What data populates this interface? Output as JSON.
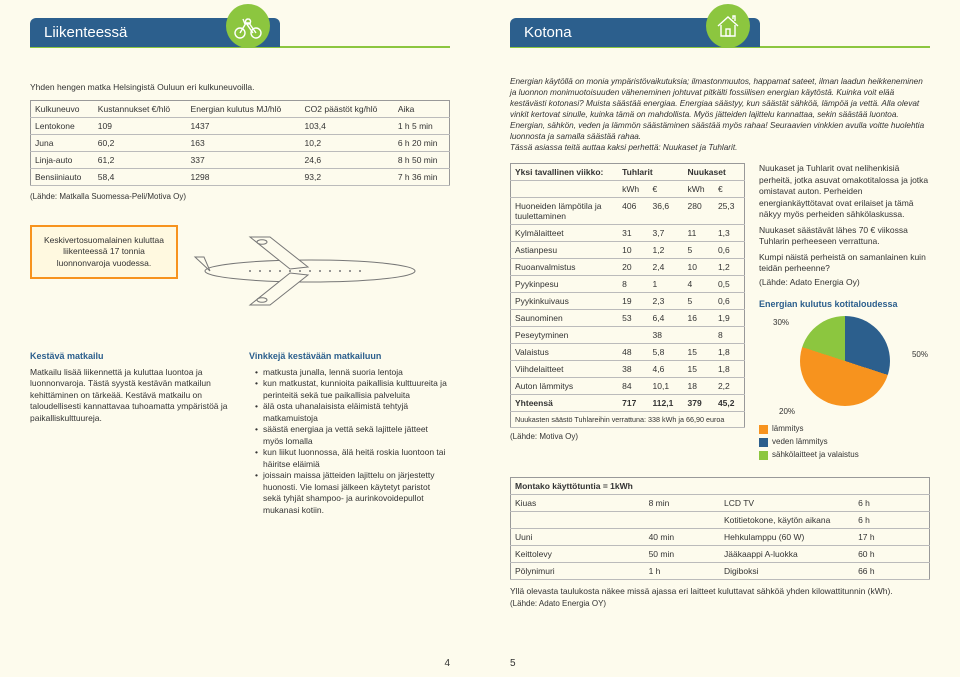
{
  "tabs": {
    "left": "Liikenteessä",
    "right": "Kotona"
  },
  "left": {
    "intro": "Yhden hengen matka Helsingistä Ouluun eri kulkuneuvoilla.",
    "transport_table": {
      "columns": [
        "Kulkuneuvo",
        "Kustannukset €/hlö",
        "Energian kulutus MJ/hlö",
        "CO2 päästöt kg/hlö",
        "Aika"
      ],
      "rows": [
        [
          "Lentokone",
          "109",
          "1437",
          "103,4",
          "1 h 5 min"
        ],
        [
          "Juna",
          "60,2",
          "163",
          "10,2",
          "6 h 20 min"
        ],
        [
          "Linja-auto",
          "61,2",
          "337",
          "24,6",
          "8 h 50 min"
        ],
        [
          "Bensiiniauto",
          "58,4",
          "1298",
          "93,2",
          "7 h 36 min"
        ]
      ]
    },
    "source1": "(Lähde: Matkalla Suomessa-Peli/Motiva Oy)",
    "note_box": "Keskivertosuomalainen kuluttaa liikenteessä 17 tonnia luonnonvaroja vuodessa.",
    "sustain_head": "Kestävä matkailu",
    "sustain_body": "Matkailu lisää liikennettä ja kuluttaa luontoa ja luonnonvaroja. Tästä syystä kestävän matkailun kehittäminen on tärkeää. Kestävä matkailu on taloudellisesti kannattavaa tuhoamatta ympäristöä ja paikalliskulttuureja.",
    "tips_head": "Vinkkejä kestävään matkailuun",
    "tips": [
      "matkusta junalla, lennä suoria lentoja",
      "kun matkustat, kunnioita paikallisia kulttuureita ja perinteitä sekä tue paikallisia palveluita",
      "älä osta uhanalaisista eläimistä tehtyjä matkamuistoja",
      "säästä energiaa ja vettä sekä lajittele jätteet myös lomalla",
      "kun liikut luonnossa, älä heitä roskia luontoon tai häiritse eläimiä",
      "joissain maissa jätteiden lajittelu on järjestetty huonosti. Vie lomasi jälkeen käytetyt paristot sekä tyhjät shampoo- ja aurinkovoidepullot mukanasi kotiin."
    ],
    "page": "4"
  },
  "right": {
    "intro": "Energian käytöllä on monia ympäristövaikutuksia; ilmastonmuutos, happamat sateet, ilman laadun heikkeneminen ja luonnon monimuotoisuuden väheneminen johtuvat pitkälti fossiilisen energian käytöstä. Kuinka voit elää kestävästi kotonasi? Muista säästää energiaa. Energiaa säästyy, kun säästät sähköä, lämpöä ja vettä. Alla olevat vinkit kertovat sinulle, kuinka tämä on mahdollista. Myös jätteiden lajittelu kannattaa, sekin säästää luontoa. Energian, sähkön, veden ja lämmön säästäminen säästää myös rahaa! Seuraavien vinkkien avulla voitte huolehtia luonnosta ja samalla säästää rahaa.",
    "intro2": "Tässä asiassa teitä auttaa kaksi perhettä: Nuukaset ja Tuhlarit.",
    "side_body1": "Nuukaset ja Tuhlarit ovat nelihenkisiä perheitä, jotka asuvat omakotitalossa ja jotka omistavat auton. Perheiden energiankäyttötavat ovat erilaiset ja tämä näkyy myös perheiden sähkölaskussa.",
    "side_body2": "Nuukaset säästävät lähes 70 € viikossa Tuhlarin perheeseen verrattuna.",
    "side_body3": "Kumpi näistä perheistä on samanlainen kuin teidän perheenne?",
    "side_src": "(Lähde: Adato Energia Oy)",
    "week_table": {
      "title_left": "Yksi tavallinen viikko:",
      "title_mid": "Tuhlarit",
      "title_right": "Nuukaset",
      "subhead": [
        "kWh",
        "€",
        "kWh",
        "€"
      ],
      "rows": [
        [
          "Huoneiden lämpötila ja tuulettaminen",
          "406",
          "36,6",
          "280",
          "25,3"
        ],
        [
          "Kylmälaitteet",
          "31",
          "3,7",
          "11",
          "1,3"
        ],
        [
          "Astianpesu",
          "10",
          "1,2",
          "5",
          "0,6"
        ],
        [
          "Ruoanvalmistus",
          "20",
          "2,4",
          "10",
          "1,2"
        ],
        [
          "Pyykinpesu",
          "8",
          "1",
          "4",
          "0,5"
        ],
        [
          "Pyykinkuivaus",
          "19",
          "2,3",
          "5",
          "0,6"
        ],
        [
          "Saunominen",
          "53",
          "6,4",
          "16",
          "1,9"
        ],
        [
          "Peseytyminen",
          "",
          "38",
          "",
          "8"
        ],
        [
          "Valaistus",
          "48",
          "5,8",
          "15",
          "1,8"
        ],
        [
          "Viihdelaitteet",
          "38",
          "4,6",
          "15",
          "1,8"
        ],
        [
          "Auton lämmitys",
          "84",
          "10,1",
          "18",
          "2,2"
        ],
        [
          "Yhteensä",
          "717",
          "112,1",
          "379",
          "45,2"
        ]
      ],
      "footer": "Nuukasten säästö Tuhlareihin verrattuna: 338 kWh ja 66,90 euroa"
    },
    "week_src": "(Lähde: Motiva Oy)",
    "pie": {
      "title": "Energian kulutus kotitaloudessa",
      "slices": [
        {
          "label": "50%",
          "color": "#f7931e"
        },
        {
          "label": "30%",
          "color": "#2c5f8d"
        },
        {
          "label": "20%",
          "color": "#8cc63f"
        }
      ],
      "legend": [
        {
          "label": "lämmitys",
          "color": "#f7931e"
        },
        {
          "label": "veden lämmitys",
          "color": "#2c5f8d"
        },
        {
          "label": "sähkölaitteet ja valaistus",
          "color": "#8cc63f"
        }
      ]
    },
    "kwh_table_head": "Montako käyttötuntia = 1kWh",
    "kwh_table": [
      [
        "Kiuas",
        "8 min",
        "LCD TV",
        "6 h"
      ],
      [
        "",
        "",
        "Kotitietokone, käytön aikana",
        "6 h"
      ],
      [
        "Uuni",
        "40 min",
        "Hehkulamppu (60 W)",
        "17 h"
      ],
      [
        "Keittolevy",
        "50 min",
        "Jääkaappi A-luokka",
        "60 h"
      ],
      [
        "Pölynimuri",
        "1 h",
        "Digiboksi",
        "66 h"
      ]
    ],
    "bottom_note": "Yllä olevasta taulukosta näkee missä ajassa eri laitteet kuluttavat sähköä yhden kilowattitunnin (kWh).",
    "bottom_src": "(Lähde: Adato Energia OY)",
    "page": "5"
  }
}
